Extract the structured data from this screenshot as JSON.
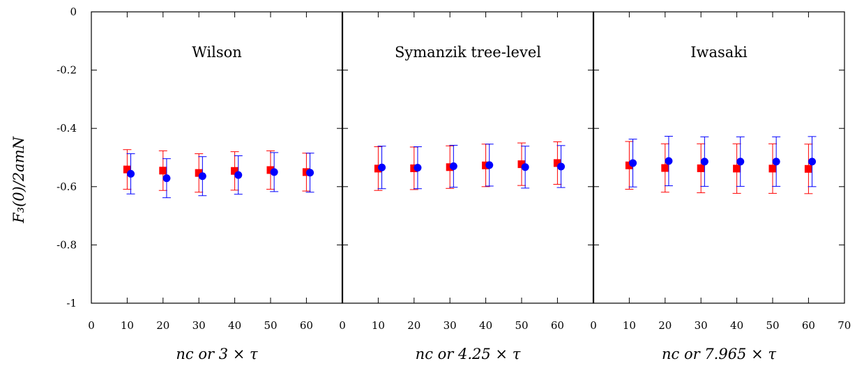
{
  "chart_data": {
    "type": "scatter",
    "ylabel": "F₃(0)/2amN",
    "ylim": [
      -1,
      0
    ],
    "yticks": [
      "0",
      "-0.2",
      "-0.4",
      "-0.6",
      "-0.8",
      "-1"
    ],
    "grid": false,
    "colors": {
      "series_a": "#ff0000",
      "series_b": "#0000ff"
    },
    "panels": [
      {
        "title": "Wilson",
        "xlabel": "nc or 3 × τ",
        "xlim": [
          0,
          70
        ],
        "xticks": [
          "0",
          "10",
          "20",
          "30",
          "40",
          "50",
          "60"
        ],
        "series": [
          {
            "marker": "square",
            "color": "#ff0000",
            "points": [
              {
                "x": 10,
                "y": -0.541,
                "err": 0.068
              },
              {
                "x": 20,
                "y": -0.545,
                "err": 0.068
              },
              {
                "x": 30,
                "y": -0.553,
                "err": 0.066
              },
              {
                "x": 40,
                "y": -0.546,
                "err": 0.066
              },
              {
                "x": 50,
                "y": -0.543,
                "err": 0.066
              },
              {
                "x": 60,
                "y": -0.55,
                "err": 0.065
              }
            ]
          },
          {
            "marker": "circle",
            "color": "#0000ff",
            "points": [
              {
                "x": 11,
                "y": -0.556,
                "err": 0.069
              },
              {
                "x": 21,
                "y": -0.571,
                "err": 0.067
              },
              {
                "x": 31,
                "y": -0.564,
                "err": 0.067
              },
              {
                "x": 41,
                "y": -0.56,
                "err": 0.066
              },
              {
                "x": 51,
                "y": -0.55,
                "err": 0.067
              },
              {
                "x": 61,
                "y": -0.552,
                "err": 0.067
              }
            ]
          }
        ]
      },
      {
        "title": "Symanzik tree-level",
        "xlabel": "nc or 4.25 × τ",
        "xlim": [
          0,
          70
        ],
        "xticks": [
          "0",
          "10",
          "20",
          "30",
          "40",
          "50",
          "60"
        ],
        "series": [
          {
            "marker": "square",
            "color": "#ff0000",
            "points": [
              {
                "x": 10,
                "y": -0.538,
                "err": 0.075
              },
              {
                "x": 20,
                "y": -0.537,
                "err": 0.073
              },
              {
                "x": 30,
                "y": -0.533,
                "err": 0.073
              },
              {
                "x": 40,
                "y": -0.527,
                "err": 0.073
              },
              {
                "x": 50,
                "y": -0.523,
                "err": 0.073
              },
              {
                "x": 60,
                "y": -0.519,
                "err": 0.073
              }
            ]
          },
          {
            "marker": "circle",
            "color": "#0000ff",
            "points": [
              {
                "x": 11,
                "y": -0.534,
                "err": 0.073
              },
              {
                "x": 21,
                "y": -0.535,
                "err": 0.072
              },
              {
                "x": 31,
                "y": -0.53,
                "err": 0.072
              },
              {
                "x": 41,
                "y": -0.526,
                "err": 0.072
              },
              {
                "x": 51,
                "y": -0.533,
                "err": 0.072
              },
              {
                "x": 61,
                "y": -0.531,
                "err": 0.072
              }
            ]
          }
        ]
      },
      {
        "title": "Iwasaki",
        "xlabel": "nc or 7.965 × τ",
        "xlim": [
          0,
          70
        ],
        "xticks": [
          "0",
          "10",
          "20",
          "30",
          "40",
          "50",
          "60",
          "70"
        ],
        "series": [
          {
            "marker": "square",
            "color": "#ff0000",
            "points": [
              {
                "x": 10,
                "y": -0.527,
                "err": 0.082
              },
              {
                "x": 20,
                "y": -0.536,
                "err": 0.083
              },
              {
                "x": 30,
                "y": -0.537,
                "err": 0.084
              },
              {
                "x": 40,
                "y": -0.538,
                "err": 0.085
              },
              {
                "x": 50,
                "y": -0.538,
                "err": 0.085
              },
              {
                "x": 60,
                "y": -0.539,
                "err": 0.085
              }
            ]
          },
          {
            "marker": "circle",
            "color": "#0000ff",
            "points": [
              {
                "x": 11,
                "y": -0.519,
                "err": 0.082
              },
              {
                "x": 21,
                "y": -0.512,
                "err": 0.085
              },
              {
                "x": 31,
                "y": -0.514,
                "err": 0.085
              },
              {
                "x": 41,
                "y": -0.514,
                "err": 0.085
              },
              {
                "x": 51,
                "y": -0.514,
                "err": 0.085
              },
              {
                "x": 61,
                "y": -0.514,
                "err": 0.086
              }
            ]
          }
        ]
      }
    ]
  }
}
